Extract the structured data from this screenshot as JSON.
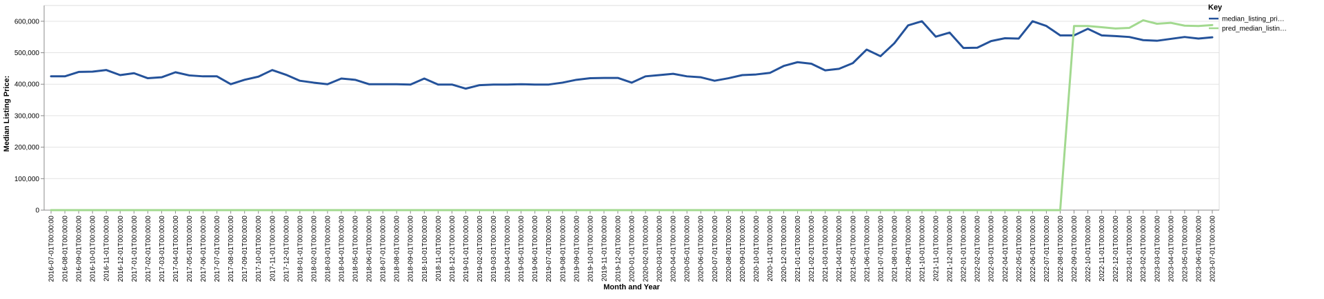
{
  "chart_data": {
    "type": "line",
    "xlabel": "Month and Year",
    "ylabel": "Median Listing Price:",
    "ylim": [
      0,
      650000
    ],
    "yticks": [
      0,
      100000,
      200000,
      300000,
      400000,
      500000,
      600000
    ],
    "ytick_labels": [
      "0",
      "100,000",
      "200,000",
      "300,000",
      "400,000",
      "500,000",
      "600,000"
    ],
    "grid": true,
    "legend_position": "top-right",
    "legend_title": "Key",
    "x": [
      "2016-07-01T00:00:00",
      "2016-08-01T00:00:00",
      "2016-09-01T00:00:00",
      "2016-10-01T00:00:00",
      "2016-11-01T00:00:00",
      "2016-12-01T00:00:00",
      "2017-01-01T00:00:00",
      "2017-02-01T00:00:00",
      "2017-03-01T00:00:00",
      "2017-04-01T00:00:00",
      "2017-05-01T00:00:00",
      "2017-06-01T00:00:00",
      "2017-07-01T00:00:00",
      "2017-08-01T00:00:00",
      "2017-09-01T00:00:00",
      "2017-10-01T00:00:00",
      "2017-11-01T00:00:00",
      "2017-12-01T00:00:00",
      "2018-01-01T00:00:00",
      "2018-02-01T00:00:00",
      "2018-03-01T00:00:00",
      "2018-04-01T00:00:00",
      "2018-05-01T00:00:00",
      "2018-06-01T00:00:00",
      "2018-07-01T00:00:00",
      "2018-08-01T00:00:00",
      "2018-09-01T00:00:00",
      "2018-10-01T00:00:00",
      "2018-11-01T00:00:00",
      "2018-12-01T00:00:00",
      "2019-01-01T00:00:00",
      "2019-02-01T00:00:00",
      "2019-03-01T00:00:00",
      "2019-04-01T00:00:00",
      "2019-05-01T00:00:00",
      "2019-06-01T00:00:00",
      "2019-07-01T00:00:00",
      "2019-08-01T00:00:00",
      "2019-09-01T00:00:00",
      "2019-10-01T00:00:00",
      "2019-11-01T00:00:00",
      "2019-12-01T00:00:00",
      "2020-01-01T00:00:00",
      "2020-02-01T00:00:00",
      "2020-03-01T00:00:00",
      "2020-04-01T00:00:00",
      "2020-05-01T00:00:00",
      "2020-06-01T00:00:00",
      "2020-07-01T00:00:00",
      "2020-08-01T00:00:00",
      "2020-09-01T00:00:00",
      "2020-10-01T00:00:00",
      "2020-11-01T00:00:00",
      "2020-12-01T00:00:00",
      "2021-01-01T00:00:00",
      "2021-02-01T00:00:00",
      "2021-03-01T00:00:00",
      "2021-04-01T00:00:00",
      "2021-05-01T00:00:00",
      "2021-06-01T00:00:00",
      "2021-07-01T00:00:00",
      "2021-08-01T00:00:00",
      "2021-09-01T00:00:00",
      "2021-10-01T00:00:00",
      "2021-11-01T00:00:00",
      "2021-12-01T00:00:00",
      "2022-01-01T00:00:00",
      "2022-02-01T00:00:00",
      "2022-03-01T00:00:00",
      "2022-04-01T00:00:00",
      "2022-05-01T00:00:00",
      "2022-06-01T00:00:00",
      "2022-07-01T00:00:00",
      "2022-08-01T00:00:00",
      "2022-09-01T00:00:00",
      "2022-10-01T00:00:00",
      "2022-11-01T00:00:00",
      "2022-12-01T00:00:00",
      "2023-01-01T00:00:00",
      "2023-02-01T00:00:00",
      "2023-03-01T00:00:00",
      "2023-04-01T00:00:00",
      "2023-05-01T00:00:00",
      "2023-06-01T00:00:00",
      "2023-07-01T00:00:00"
    ],
    "series": [
      {
        "name": "median_listing_pri…",
        "color": "#24529a",
        "values": [
          425000,
          425000,
          439000,
          440000,
          445000,
          429000,
          435000,
          419000,
          422000,
          438000,
          428000,
          425000,
          425000,
          400000,
          414000,
          424000,
          445000,
          430000,
          411000,
          405000,
          400000,
          418000,
          414000,
          400000,
          400000,
          400000,
          399000,
          418000,
          399000,
          399000,
          386000,
          397000,
          399000,
          399000,
          400000,
          399000,
          399000,
          405000,
          414000,
          419000,
          420000,
          420000,
          405000,
          425000,
          429000,
          433000,
          425000,
          422000,
          411000,
          419000,
          429000,
          431000,
          436000,
          458000,
          470000,
          465000,
          444000,
          449000,
          467000,
          510000,
          489000,
          530000,
          587000,
          600000,
          551000,
          564000,
          515000,
          516000,
          537000,
          546000,
          545000,
          600000,
          585000,
          555000,
          555000,
          576000,
          555000,
          553000,
          550000,
          540000,
          538000,
          544000,
          550000,
          545000,
          549000
        ]
      },
      {
        "name": "pred_median_listin…",
        "color": "#a2d98f",
        "values": [
          0,
          0,
          0,
          0,
          0,
          0,
          0,
          0,
          0,
          0,
          0,
          0,
          0,
          0,
          0,
          0,
          0,
          0,
          0,
          0,
          0,
          0,
          0,
          0,
          0,
          0,
          0,
          0,
          0,
          0,
          0,
          0,
          0,
          0,
          0,
          0,
          0,
          0,
          0,
          0,
          0,
          0,
          0,
          0,
          0,
          0,
          0,
          0,
          0,
          0,
          0,
          0,
          0,
          0,
          0,
          0,
          0,
          0,
          0,
          0,
          0,
          0,
          0,
          0,
          0,
          0,
          0,
          0,
          0,
          0,
          0,
          0,
          0,
          0,
          585000,
          585000,
          581000,
          577000,
          579000,
          603000,
          592000,
          595000,
          586000,
          585000,
          588000
        ]
      }
    ]
  }
}
